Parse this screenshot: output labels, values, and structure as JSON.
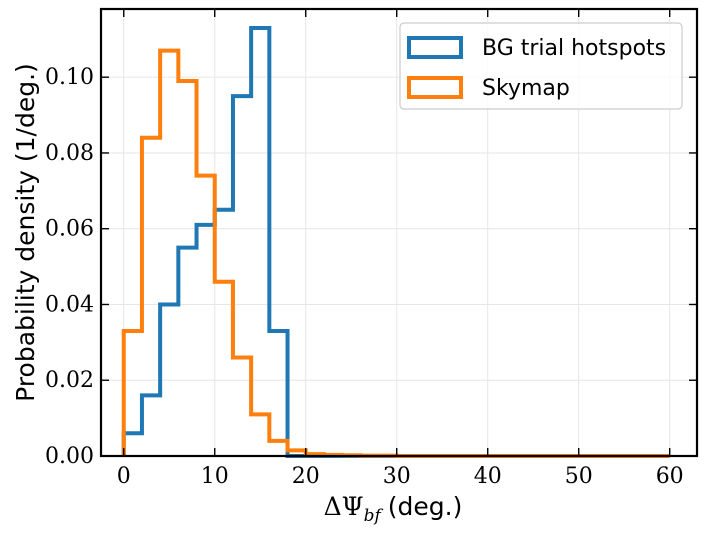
{
  "chart_data": {
    "type": "histogram",
    "xlabel_math": "ΔΨ",
    "xlabel_sub": "bf",
    "xlabel_unit": "(deg.)",
    "ylabel": "Probability density (1/deg.)",
    "xlim": [
      -2.5,
      63
    ],
    "ylim": [
      0,
      0.118
    ],
    "xticks": [
      0,
      10,
      20,
      30,
      40,
      50,
      60
    ],
    "yticks": [
      0.0,
      0.02,
      0.04,
      0.06,
      0.08,
      0.1
    ],
    "ytick_labels": [
      "0.00",
      "0.02",
      "0.04",
      "0.06",
      "0.08",
      "0.10"
    ],
    "grid": true,
    "legend_position": "top-right",
    "bin_edges": [
      0,
      2,
      4,
      6,
      8,
      10,
      12,
      14,
      16,
      18,
      20,
      22,
      24,
      26,
      28,
      30,
      32,
      34,
      36,
      38,
      40,
      42,
      44,
      46,
      48,
      50,
      52,
      54,
      56,
      58,
      60
    ],
    "series": [
      {
        "name": "BG trial hotspots",
        "color": "#1f77b4",
        "values": [
          0.006,
          0.016,
          0.04,
          0.055,
          0.061,
          0.065,
          0.095,
          0.113,
          0.033,
          0,
          0,
          0,
          0,
          0,
          0,
          0,
          0,
          0,
          0,
          0,
          0,
          0,
          0,
          0,
          0,
          0,
          0,
          0,
          0,
          0
        ]
      },
      {
        "name": "Skymap",
        "color": "#ff7f0e",
        "values": [
          0.033,
          0.084,
          0.107,
          0.099,
          0.074,
          0.046,
          0.026,
          0.011,
          0.004,
          0.0015,
          0.0005,
          0.0003,
          0.0002,
          0.0001,
          0.0001,
          0,
          0,
          0,
          0,
          0,
          0,
          0,
          0,
          0,
          0,
          0,
          0,
          0,
          0,
          0
        ]
      }
    ]
  }
}
